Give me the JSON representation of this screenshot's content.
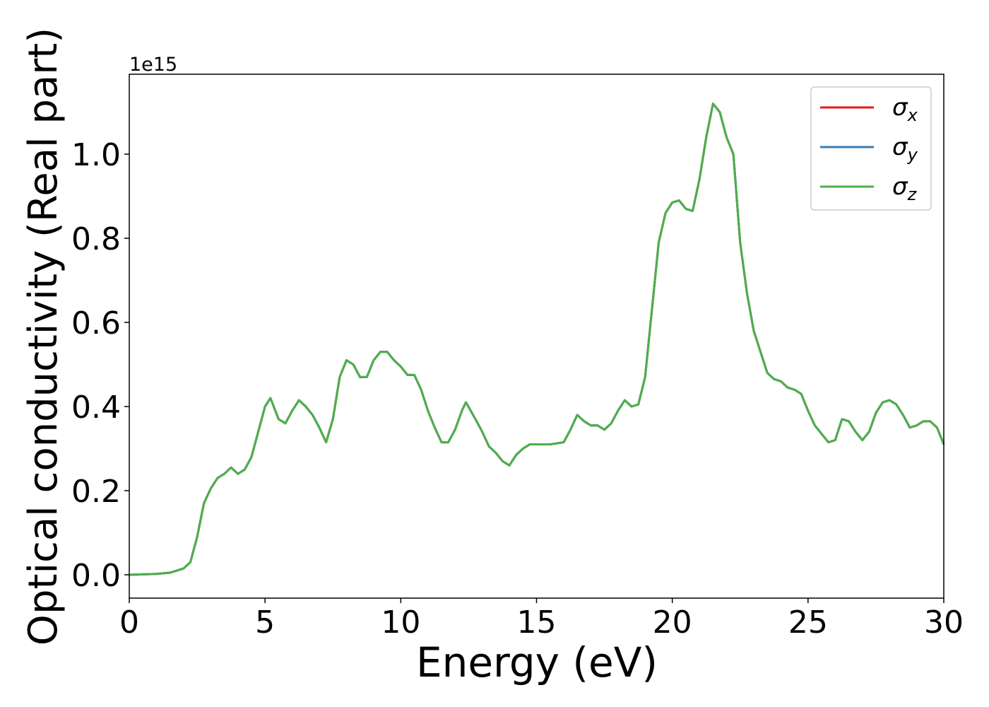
{
  "chart_data": {
    "type": "line",
    "xlabel": "Energy (eV)",
    "ylabel": "Optical conductivity (Real part)",
    "offset_label": "1e15",
    "x": [
      0,
      1,
      1.5,
      2,
      2.25,
      2.5,
      2.75,
      3,
      3.25,
      3.5,
      3.75,
      4,
      4.25,
      4.5,
      4.75,
      5,
      5.2,
      5.5,
      5.75,
      6,
      6.25,
      6.5,
      6.75,
      7,
      7.25,
      7.5,
      7.75,
      8,
      8.25,
      8.5,
      8.75,
      9,
      9.25,
      9.5,
      9.75,
      10,
      10.25,
      10.5,
      10.75,
      11,
      11.25,
      11.5,
      11.75,
      12,
      12.25,
      12.4,
      12.75,
      13,
      13.25,
      13.5,
      13.75,
      14,
      14.25,
      14.5,
      14.75,
      15,
      15.5,
      16,
      16.25,
      16.5,
      16.75,
      17,
      17.25,
      17.5,
      17.75,
      18,
      18.25,
      18.5,
      18.75,
      19,
      19.25,
      19.5,
      19.75,
      20,
      20.25,
      20.5,
      20.75,
      21,
      21.25,
      21.5,
      21.75,
      22,
      22.25,
      22.5,
      22.75,
      23,
      23.25,
      23.5,
      23.75,
      24,
      24.25,
      24.5,
      24.75,
      25,
      25.25,
      25.5,
      25.75,
      26,
      26.25,
      26.5,
      26.75,
      27,
      27.25,
      27.5,
      27.75,
      28,
      28.25,
      28.5,
      28.75,
      29,
      29.25,
      29.5,
      29.75,
      30
    ],
    "series": [
      {
        "name": "σx",
        "color": "#e41a1c",
        "values": [
          0,
          0.002,
          0.005,
          0.015,
          0.03,
          0.09,
          0.17,
          0.205,
          0.23,
          0.24,
          0.255,
          0.24,
          0.25,
          0.28,
          0.34,
          0.4,
          0.42,
          0.37,
          0.36,
          0.39,
          0.415,
          0.4,
          0.38,
          0.35,
          0.315,
          0.37,
          0.47,
          0.51,
          0.5,
          0.47,
          0.47,
          0.51,
          0.53,
          0.53,
          0.51,
          0.495,
          0.475,
          0.475,
          0.44,
          0.39,
          0.35,
          0.315,
          0.315,
          0.345,
          0.39,
          0.41,
          0.37,
          0.34,
          0.305,
          0.29,
          0.27,
          0.26,
          0.285,
          0.3,
          0.31,
          0.31,
          0.31,
          0.315,
          0.345,
          0.38,
          0.365,
          0.355,
          0.355,
          0.345,
          0.36,
          0.39,
          0.415,
          0.4,
          0.405,
          0.47,
          0.63,
          0.79,
          0.86,
          0.885,
          0.89,
          0.87,
          0.865,
          0.94,
          1.04,
          1.12,
          1.1,
          1.04,
          1.0,
          0.79,
          0.67,
          0.58,
          0.53,
          0.48,
          0.465,
          0.46,
          0.445,
          0.44,
          0.43,
          0.39,
          0.355,
          0.335,
          0.315,
          0.32,
          0.37,
          0.365,
          0.34,
          0.32,
          0.34,
          0.385,
          0.41,
          0.415,
          0.405,
          0.38,
          0.35,
          0.355,
          0.365,
          0.365,
          0.35,
          0.31
        ]
      },
      {
        "name": "σy",
        "color": "#377eb8",
        "values": [
          0,
          0.002,
          0.005,
          0.015,
          0.03,
          0.09,
          0.17,
          0.205,
          0.23,
          0.24,
          0.255,
          0.24,
          0.25,
          0.28,
          0.34,
          0.4,
          0.42,
          0.37,
          0.36,
          0.39,
          0.415,
          0.4,
          0.38,
          0.35,
          0.315,
          0.37,
          0.47,
          0.51,
          0.5,
          0.47,
          0.47,
          0.51,
          0.53,
          0.53,
          0.51,
          0.495,
          0.475,
          0.475,
          0.44,
          0.39,
          0.35,
          0.315,
          0.315,
          0.345,
          0.39,
          0.41,
          0.37,
          0.34,
          0.305,
          0.29,
          0.27,
          0.26,
          0.285,
          0.3,
          0.31,
          0.31,
          0.31,
          0.315,
          0.345,
          0.38,
          0.365,
          0.355,
          0.355,
          0.345,
          0.36,
          0.39,
          0.415,
          0.4,
          0.405,
          0.47,
          0.63,
          0.79,
          0.86,
          0.885,
          0.89,
          0.87,
          0.865,
          0.94,
          1.04,
          1.12,
          1.1,
          1.04,
          1.0,
          0.79,
          0.67,
          0.58,
          0.53,
          0.48,
          0.465,
          0.46,
          0.445,
          0.44,
          0.43,
          0.39,
          0.355,
          0.335,
          0.315,
          0.32,
          0.37,
          0.365,
          0.34,
          0.32,
          0.34,
          0.385,
          0.41,
          0.415,
          0.405,
          0.38,
          0.35,
          0.355,
          0.365,
          0.365,
          0.35,
          0.31
        ]
      },
      {
        "name": "σz",
        "color": "#4daf4a",
        "values": [
          0,
          0.002,
          0.005,
          0.015,
          0.03,
          0.09,
          0.17,
          0.205,
          0.23,
          0.24,
          0.255,
          0.24,
          0.25,
          0.28,
          0.34,
          0.4,
          0.42,
          0.37,
          0.36,
          0.39,
          0.415,
          0.4,
          0.38,
          0.35,
          0.315,
          0.37,
          0.47,
          0.51,
          0.5,
          0.47,
          0.47,
          0.51,
          0.53,
          0.53,
          0.51,
          0.495,
          0.475,
          0.475,
          0.44,
          0.39,
          0.35,
          0.315,
          0.315,
          0.345,
          0.39,
          0.41,
          0.37,
          0.34,
          0.305,
          0.29,
          0.27,
          0.26,
          0.285,
          0.3,
          0.31,
          0.31,
          0.31,
          0.315,
          0.345,
          0.38,
          0.365,
          0.355,
          0.355,
          0.345,
          0.36,
          0.39,
          0.415,
          0.4,
          0.405,
          0.47,
          0.63,
          0.79,
          0.86,
          0.885,
          0.89,
          0.87,
          0.865,
          0.94,
          1.04,
          1.12,
          1.1,
          1.04,
          1.0,
          0.79,
          0.67,
          0.58,
          0.53,
          0.48,
          0.465,
          0.46,
          0.445,
          0.44,
          0.43,
          0.39,
          0.355,
          0.335,
          0.315,
          0.32,
          0.37,
          0.365,
          0.34,
          0.32,
          0.34,
          0.385,
          0.41,
          0.415,
          0.405,
          0.38,
          0.35,
          0.355,
          0.365,
          0.365,
          0.35,
          0.31
        ]
      }
    ],
    "xlim": [
      0,
      30
    ],
    "xticks": [
      0,
      5,
      10,
      15,
      20,
      25,
      30
    ],
    "ylim": [
      -0.0555,
      1.19
    ],
    "yticks": [
      {
        "value": 0,
        "label": "0.0"
      },
      {
        "value": 0.2,
        "label": "0.2"
      },
      {
        "value": 0.4,
        "label": "0.4"
      },
      {
        "value": 0.6,
        "label": "0.6"
      },
      {
        "value": 0.8,
        "label": "0.8"
      },
      {
        "value": 1.0,
        "label": "1.0"
      }
    ],
    "legend": "upper right"
  }
}
